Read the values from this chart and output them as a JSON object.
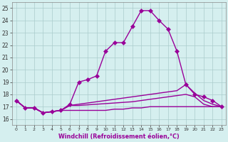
{
  "x": [
    0,
    1,
    2,
    3,
    4,
    5,
    6,
    7,
    8,
    9,
    10,
    11,
    12,
    13,
    14,
    15,
    16,
    17,
    18,
    19,
    20,
    21,
    22,
    23
  ],
  "line_main": [
    17.5,
    16.9,
    16.9,
    16.5,
    16.6,
    16.7,
    17.2,
    19.0,
    19.2,
    19.5,
    21.5,
    22.2,
    22.2,
    23.5,
    24.8,
    24.8,
    24.0,
    23.3,
    21.5,
    18.8,
    18.0,
    17.8,
    17.5,
    17.0
  ],
  "line_a": [
    17.5,
    16.9,
    16.9,
    16.5,
    16.6,
    16.7,
    17.1,
    17.2,
    17.3,
    17.4,
    17.5,
    17.6,
    17.7,
    17.8,
    17.9,
    18.0,
    18.1,
    18.2,
    18.3,
    18.8,
    18.1,
    17.5,
    17.2,
    17.0
  ],
  "line_b": [
    17.5,
    16.9,
    16.9,
    16.5,
    16.6,
    16.7,
    17.1,
    17.1,
    17.15,
    17.2,
    17.25,
    17.3,
    17.35,
    17.4,
    17.5,
    17.6,
    17.7,
    17.8,
    17.9,
    18.0,
    17.8,
    17.2,
    17.0,
    17.0
  ],
  "line_c": [
    17.5,
    16.9,
    16.9,
    16.5,
    16.6,
    16.7,
    16.7,
    16.7,
    16.7,
    16.7,
    16.7,
    16.8,
    16.8,
    16.9,
    16.9,
    17.0,
    17.0,
    17.0,
    17.0,
    17.0,
    17.0,
    17.0,
    17.0,
    17.0
  ],
  "line_color": "#990099",
  "bg_color": "#d5efef",
  "grid_color": "#aacccc",
  "xlabel": "Windchill (Refroidissement éolien,°C)",
  "ylabel_ticks": [
    16,
    17,
    18,
    19,
    20,
    21,
    22,
    23,
    24,
    25
  ],
  "xlim": [
    -0.5,
    23.5
  ],
  "ylim": [
    15.5,
    25.5
  ],
  "xticks": [
    0,
    1,
    2,
    3,
    4,
    5,
    6,
    7,
    8,
    9,
    10,
    11,
    12,
    13,
    14,
    15,
    16,
    17,
    18,
    19,
    20,
    21,
    22,
    23
  ]
}
